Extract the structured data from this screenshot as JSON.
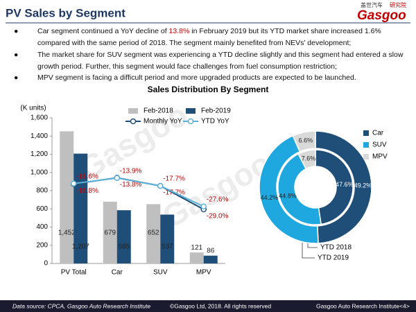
{
  "header": {
    "title": "PV Sales by Segment",
    "logo": {
      "cn": "盖世汽车",
      "tag": "研究院",
      "name": "Gasgoo"
    }
  },
  "bullets": [
    [
      "Car segment continued a YoY decline of ",
      "13.8%",
      " in February 2019 but its YTD market share increased 1.6% compared with the same period of 2018. The segment mainly benefited from NEVs’ development;"
    ],
    [
      "The market share for SUV segment was experiencing a YTD decline slightly and this segment had entered a slow growth period. Further, this segment would face challenges from fuel consumption restriction;"
    ],
    [
      "MPV segment is facing a difficult period and more upgraded products are expected to be launched."
    ]
  ],
  "watermark": "Gasgoo",
  "chart_data": [
    {
      "type": "bar",
      "title": "Sales Distribution  By Segment",
      "y_label": "(K units)",
      "categories": [
        "PV Total",
        "Car",
        "SUV",
        "MPV"
      ],
      "series": [
        {
          "name": "Feb-2018",
          "type": "bar",
          "color": "#bfbfbf",
          "values": [
            1452,
            679,
            652,
            121
          ],
          "value_labels": [
            "1,452",
            "679",
            "652",
            "121"
          ]
        },
        {
          "name": "Feb-2019",
          "type": "bar",
          "color": "#1f4e79",
          "values": [
            1207,
            585,
            537,
            86
          ],
          "value_labels": [
            "1,207",
            "585",
            "537",
            "86"
          ]
        },
        {
          "name": "Monthly YoY",
          "type": "line",
          "axis": "y2",
          "color": "#1f4e79",
          "values": [
            -16.8,
            -13.8,
            -17.7,
            -29.0
          ],
          "value_labels": [
            "-16.8%",
            "-13.8%",
            "-17.7%",
            "-29.0%"
          ]
        },
        {
          "name": "YTD YoY",
          "type": "line",
          "axis": "y2",
          "color": "#5bb3d9",
          "values": [
            -16.6,
            -13.9,
            -17.7,
            -27.6
          ],
          "value_labels": [
            "-16.6%",
            "-13.9%",
            "-17.7%",
            "-27.6%"
          ]
        }
      ],
      "ylim": [
        0,
        1600
      ],
      "yticks": [
        0,
        200,
        400,
        600,
        800,
        {
          "value": 1000,
          "label": "1,000"
        },
        {
          "value": 1200,
          "label": "1,200"
        },
        {
          "value": 1400,
          "label": "1,400"
        },
        {
          "value": 1600,
          "label": "1,600"
        }
      ],
      "y2lim": [
        -55,
        15
      ],
      "value_label_color": "#c00000"
    },
    {
      "type": "donut",
      "categories": [
        "Car",
        "SUV",
        "MPV"
      ],
      "colors": [
        "#1f4e79",
        "#1fa8e0",
        "#d9d9d9"
      ],
      "series": [
        {
          "name": "YTD 2018",
          "values": [
            47.6,
            44.8,
            7.6
          ],
          "value_labels": [
            "47.6%",
            "44.8%",
            "7.6%"
          ]
        },
        {
          "name": "YTD 2019",
          "values": [
            49.2,
            44.2,
            6.6
          ],
          "value_labels": [
            "49.2%",
            "44.2%",
            "6.6%"
          ]
        }
      ]
    }
  ],
  "footer": {
    "source": "Data source: CPCA, Gasgoo Auto Research Institute",
    "copyright": "©Gasgoo Ltd, 2018.  All rights reserved",
    "institute": "Gasgoo Auto Research Institute",
    "page": "<4>"
  }
}
